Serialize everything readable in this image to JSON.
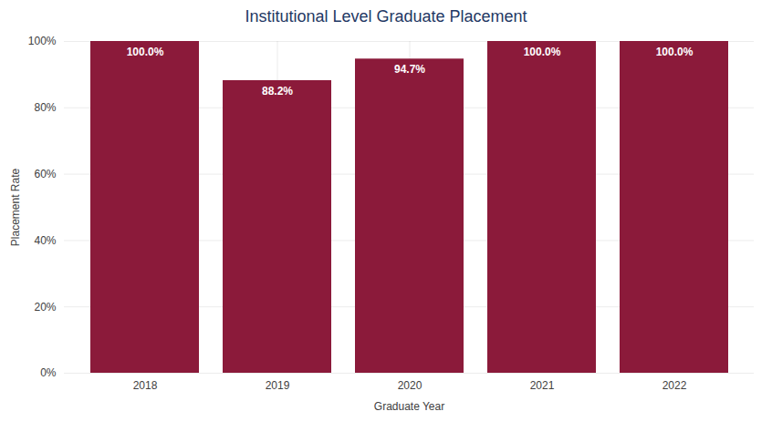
{
  "chart_data": {
    "type": "bar",
    "title": "Institutional Level Graduate Placement",
    "xlabel": "Graduate Year",
    "ylabel": "Placement Rate",
    "categories": [
      "2018",
      "2019",
      "2020",
      "2021",
      "2022"
    ],
    "values": [
      100.0,
      88.2,
      94.7,
      100.0,
      100.0
    ],
    "value_labels": [
      "100.0%",
      "88.2%",
      "94.7%",
      "100.0%",
      "100.0%"
    ],
    "data_labels": true,
    "color": "#8B1A3A",
    "ylim": [
      0,
      100
    ],
    "yticks": [
      {
        "value": 0,
        "label": "0%"
      },
      {
        "value": 20,
        "label": "20%"
      },
      {
        "value": 40,
        "label": "40%"
      },
      {
        "value": 60,
        "label": "60%"
      },
      {
        "value": 80,
        "label": "80%"
      },
      {
        "value": 100,
        "label": "100%"
      }
    ],
    "grid": true
  }
}
